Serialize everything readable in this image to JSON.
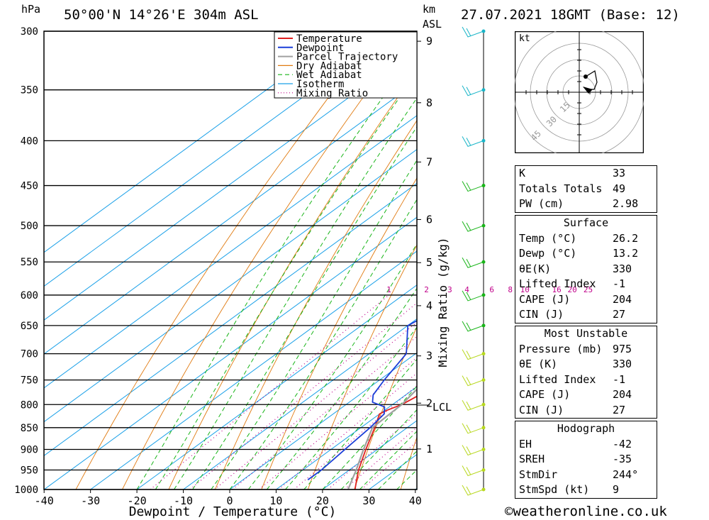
{
  "header": {
    "location": "50°00'N 14°26'E 304m ASL",
    "time": "27.07.2021 18GMT (Base: 12)",
    "hpa_label": "hPa",
    "km_label": "km",
    "asl_label": "ASL"
  },
  "chart_data": {
    "type": "line",
    "title": "50°00'N 14°26'E 304m ASL",
    "xlabel": "Dewpoint / Temperature (°C)",
    "ylabel": "hPa",
    "secondary_ylabel": "Mixing Ratio (g/kg)",
    "x_ticks": [
      "-40",
      "-30",
      "-20",
      "-10",
      "0",
      "10",
      "20",
      "30",
      "40"
    ],
    "pressure_ticks": [
      "300",
      "350",
      "400",
      "450",
      "500",
      "550",
      "600",
      "650",
      "700",
      "750",
      "800",
      "850",
      "900",
      "950",
      "1000"
    ],
    "km_ticks": [
      "9",
      "8",
      "7",
      "6",
      "5",
      "4",
      "3",
      "2",
      "1"
    ],
    "km_pressures": [
      308,
      362,
      423,
      492,
      551,
      617,
      704,
      797,
      899
    ],
    "lcl_label": "LCL",
    "lcl_pressure": 801,
    "mixing_ratio_labels": [
      "1",
      "2",
      "3",
      "4",
      "6",
      "8",
      "10",
      "16",
      "20",
      "25"
    ],
    "mixing_ratio_values": [
      1,
      2,
      3,
      4,
      6,
      8,
      10,
      16,
      20,
      25
    ],
    "legend": [
      "Temperature",
      "Dewpoint",
      "Parcel Trajectory",
      "Dry Adiabat",
      "Wet Adiabat",
      "Isotherm",
      "Mixing Ratio"
    ],
    "colors": {
      "temperature": "#e02020",
      "dewpoint": "#1a3ed8",
      "parcel": "#a0a0a0",
      "dry_adiabat": "#e07a10",
      "wet_adiabat": "#19b519",
      "isotherm": "#1aa0e8",
      "mixing_ratio": "#c0008a"
    },
    "series": [
      {
        "name": "Temperature",
        "points": [
          [
            1000,
            27
          ],
          [
            970,
            24
          ],
          [
            950,
            22
          ],
          [
            900,
            17.5
          ],
          [
            850,
            13
          ],
          [
            820,
            10
          ],
          [
            812,
            10.5
          ],
          [
            800,
            12
          ],
          [
            780,
            13
          ],
          [
            750,
            10.5
          ],
          [
            700,
            6
          ],
          [
            680,
            5.5
          ],
          [
            650,
            2
          ],
          [
            600,
            -4
          ],
          [
            590,
            -3.5
          ],
          [
            560,
            -7
          ],
          [
            550,
            -8
          ],
          [
            520,
            -11
          ],
          [
            500,
            -13
          ],
          [
            480,
            -15
          ],
          [
            450,
            -19.5
          ],
          [
            420,
            -23
          ],
          [
            400,
            -25
          ],
          [
            380,
            -28
          ],
          [
            350,
            -33
          ],
          [
            320,
            -37
          ],
          [
            300,
            -41
          ]
        ]
      },
      {
        "name": "Dewpoint",
        "points": [
          [
            975,
            14
          ],
          [
            950,
            14
          ],
          [
            900,
            13
          ],
          [
            850,
            12
          ],
          [
            820,
            11
          ],
          [
            805,
            9
          ],
          [
            795,
            5
          ],
          [
            780,
            3
          ],
          [
            750,
            1
          ],
          [
            700,
            -2
          ],
          [
            650,
            -10
          ],
          [
            620,
            -8
          ],
          [
            600,
            -10
          ],
          [
            575,
            -15
          ],
          [
            560,
            -17
          ],
          [
            540,
            -14
          ],
          [
            530,
            -20
          ],
          [
            510,
            -18
          ],
          [
            500,
            -19
          ],
          [
            485,
            -27
          ],
          [
            470,
            -32
          ],
          [
            460,
            -23
          ],
          [
            455,
            -42
          ],
          [
            450,
            -25
          ],
          [
            440,
            -12
          ],
          [
            400,
            -17
          ],
          [
            380,
            -16
          ],
          [
            350,
            -19
          ],
          [
            340,
            -24
          ],
          [
            330,
            -29
          ],
          [
            300,
            -36
          ]
        ]
      },
      {
        "name": "Parcel Trajectory",
        "points": [
          [
            1000,
            25.5
          ],
          [
            950,
            21.5
          ],
          [
            900,
            17
          ],
          [
            850,
            12.5
          ],
          [
            800,
            12
          ],
          [
            750,
            10
          ],
          [
            700,
            7.5
          ],
          [
            650,
            5
          ],
          [
            600,
            1.5
          ],
          [
            550,
            -3
          ],
          [
            500,
            -8
          ],
          [
            450,
            -14
          ],
          [
            400,
            -21
          ],
          [
            350,
            -29
          ],
          [
            300,
            -38
          ]
        ]
      }
    ]
  },
  "wind_profile": {
    "label": "wind barbs",
    "pressures": [
      300,
      350,
      400,
      450,
      500,
      550,
      600,
      650,
      700,
      750,
      800,
      850,
      900,
      950,
      1000
    ]
  },
  "hodograph": {
    "unit_label": "kt",
    "ring_labels": [
      "15",
      "30",
      "45"
    ]
  },
  "indices": {
    "k_label": "K",
    "k_value": "33",
    "tt_label": "Totals Totals",
    "tt_value": "49",
    "pw_label": "PW (cm)",
    "pw_value": "2.98"
  },
  "surface": {
    "title": "Surface",
    "temp_label": "Temp (°C)",
    "temp_value": "26.2",
    "dewp_label": "Dewp (°C)",
    "dewp_value": "13.2",
    "theta_label": "θE(K)",
    "theta_value": "330",
    "li_label": "Lifted Index",
    "li_value": "-1",
    "cape_label": "CAPE (J)",
    "cape_value": "204",
    "cin_label": "CIN (J)",
    "cin_value": "27"
  },
  "most_unstable": {
    "title": "Most Unstable",
    "pressure_label": "Pressure (mb)",
    "pressure_value": "975",
    "theta_label": "θE (K)",
    "theta_value": "330",
    "li_label": "Lifted Index",
    "li_value": "-1",
    "cape_label": "CAPE (J)",
    "cape_value": "204",
    "cin_label": "CIN (J)",
    "cin_value": "27"
  },
  "hodograph_table": {
    "title": "Hodograph",
    "eh_label": "EH",
    "eh_value": "-42",
    "sreh_label": "SREH",
    "sreh_value": "-35",
    "stmdir_label": "StmDir",
    "stmdir_value": "244°",
    "stmspd_label": "StmSpd (kt)",
    "stmspd_value": "9"
  },
  "footer": {
    "copyright": "©weatheronline.co.uk"
  }
}
